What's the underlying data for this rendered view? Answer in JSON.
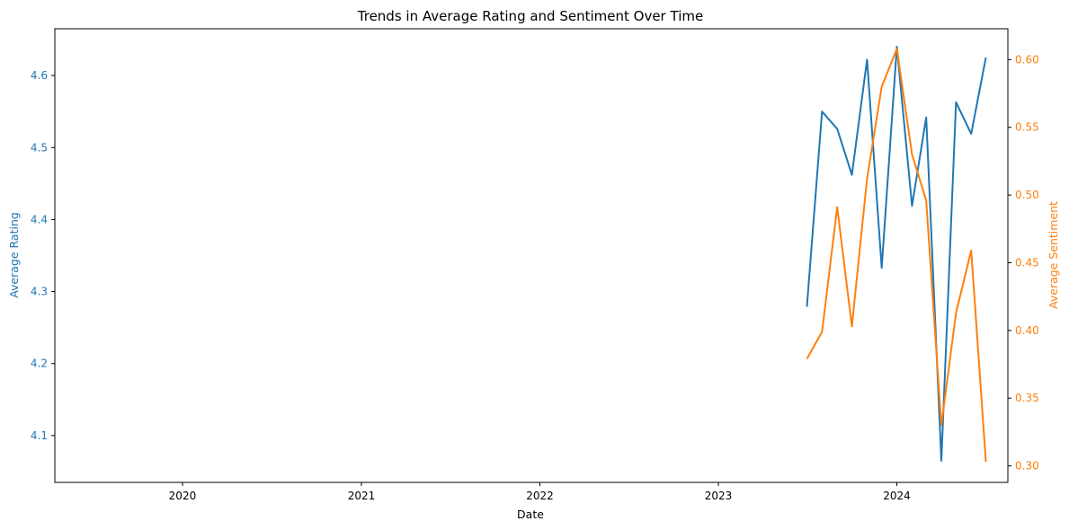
{
  "chart_data": {
    "type": "line",
    "title": "Trends in Average Rating and Sentiment Over Time",
    "xlabel": "Date",
    "ylabel_left": "Average Rating",
    "ylabel_right": "Average Sentiment",
    "x_tick_labels": [
      "2020",
      "2021",
      "2022",
      "2023",
      "2024"
    ],
    "y_left_tick_labels": [
      "4.1",
      "4.2",
      "4.3",
      "4.4",
      "4.5",
      "4.6"
    ],
    "y_right_tick_labels": [
      "0.30",
      "0.35",
      "0.40",
      "0.45",
      "0.50",
      "0.55",
      "0.60"
    ],
    "xlim": [
      "2019-04-15",
      "2024-08-15"
    ],
    "ylim_left": [
      4.035,
      4.665
    ],
    "ylim_right": [
      0.2878,
      0.6228
    ],
    "grid": false,
    "x": [
      "2023-07",
      "2023-08",
      "2023-09",
      "2023-10",
      "2023-11",
      "2023-12",
      "2024-01",
      "2024-02",
      "2024-03",
      "2024-04",
      "2024-05",
      "2024-06",
      "2024-07"
    ],
    "series": [
      {
        "name": "Average Rating",
        "axis": "left",
        "color": "#1f77b4",
        "values": [
          4.279,
          4.55,
          4.526,
          4.462,
          4.622,
          4.333,
          4.64,
          4.419,
          4.542,
          4.065,
          4.563,
          4.519,
          4.625
        ]
      },
      {
        "name": "Average Sentiment",
        "axis": "right",
        "color": "#ff7f0e",
        "values": [
          0.379,
          0.399,
          0.491,
          0.403,
          0.512,
          0.58,
          0.608,
          0.53,
          0.496,
          0.33,
          0.413,
          0.459,
          0.303
        ]
      }
    ]
  }
}
